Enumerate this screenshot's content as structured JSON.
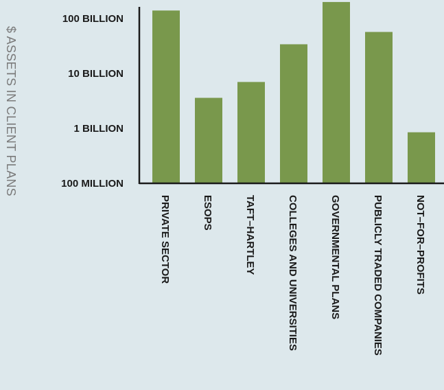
{
  "chart_data": {
    "type": "bar",
    "title": "",
    "xlabel": "",
    "ylabel": "$ ASSETS IN CLIENT PLANS",
    "yscale": "log",
    "ylim": [
      100000000,
      200000000000
    ],
    "yticks": [
      {
        "value": 100000000,
        "label": "100 MILLION"
      },
      {
        "value": 1000000000,
        "label": "1 BILLION"
      },
      {
        "value": 10000000000,
        "label": "10 BILLION"
      },
      {
        "value": 100000000000,
        "label": "100 BILLION"
      }
    ],
    "categories": [
      "PRIVATE SECTOR",
      "ESOPS",
      "TAFT–HARTLEY",
      "COLLEGES AND UNIVERSITIES",
      "GOVERNMENTAL PLANS",
      "PUBLICLY TRADED COMPANIES",
      "NOT–FOR–PROFITS"
    ],
    "values": [
      140000000000,
      3600000000,
      7000000000,
      34000000000,
      200000000000,
      57000000000,
      850000000
    ],
    "bar_color": "#79984c",
    "background": "#dde8ec",
    "grid": false,
    "legend": "none"
  }
}
